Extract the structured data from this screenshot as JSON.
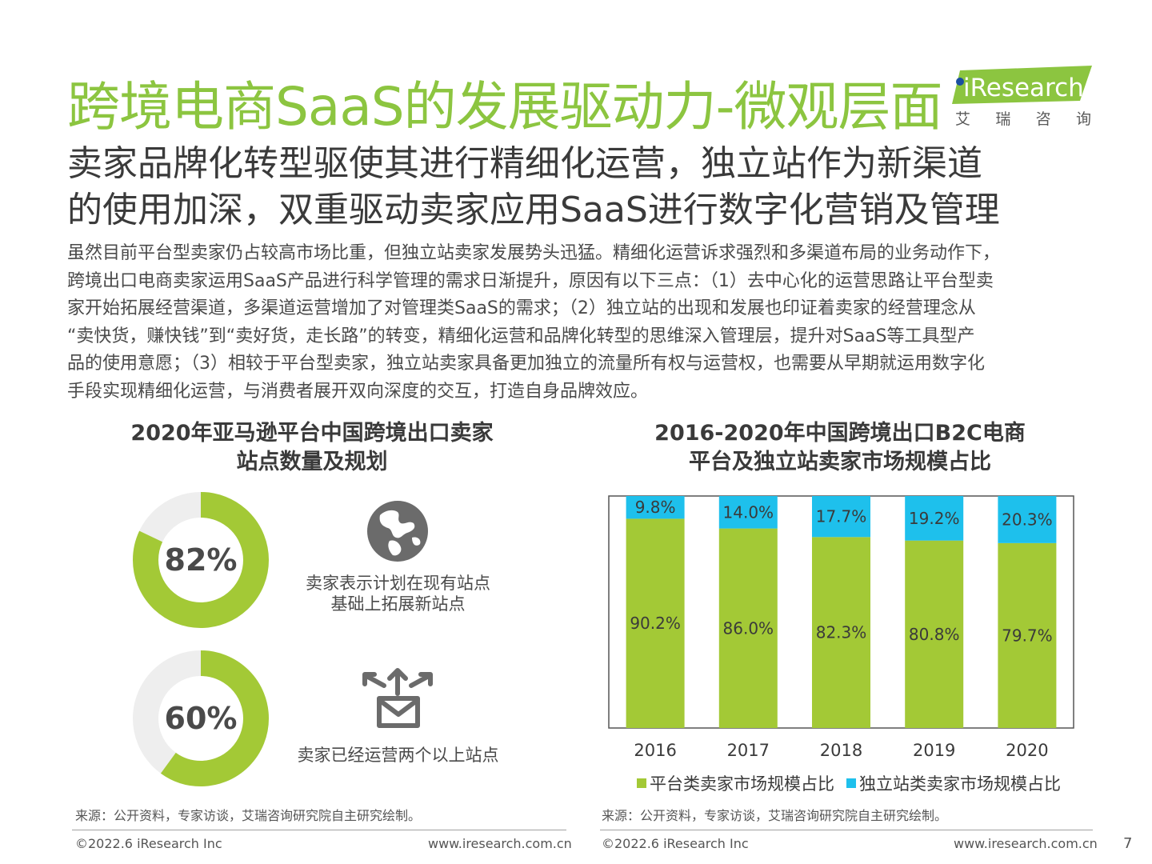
{
  "header": {
    "title": "跨境电商SaaS的发展驱动力-微观层面",
    "logo_text": "iResearch",
    "logo_cn": [
      "艾",
      "瑞",
      "咨",
      "询"
    ]
  },
  "subtitle": {
    "line1": "卖家品牌化转型驱使其进行精细化运营，独立站作为新渠道",
    "line2": "的使用加深，双重驱动卖家应用SaaS进行数字化营销及管理"
  },
  "body_lines": [
    "虽然目前平台型卖家仍占较高市场比重，但独立站卖家发展势头迅猛。精细化运营诉求强烈和多渠道布局的业务动作下，",
    "跨境出口电商卖家运用SaaS产品进行科学管理的需求日渐提升，原因有以下三点：（1）去中心化的运营思路让平台型卖",
    "家开始拓展经营渠道，多渠道运营增加了对管理类SaaS的需求；（2）独立站的出现和发展也印证着卖家的经营理念从",
    "“卖快货，赚快钱”到“卖好货，走长路”的转变，精细化运营和品牌化转型的思维深入管理层，提升对SaaS等工具型产",
    "品的使用意愿；（3）相较于平台型卖家，独立站卖家具备更加独立的流量所有权与运营权，也需要从早期就运用数字化",
    "手段实现精细化运营，与消费者展开双向深度的交互，打造自身品牌效应。"
  ],
  "left_panel": {
    "title_line1": "2020年亚马逊平台中国跨境出口卖家",
    "title_line2": "站点数量及规划",
    "stat1": {
      "percent": 82,
      "label": "82%",
      "caption_line1": "卖家表示计划在现有站点",
      "caption_line2": "基础上拓展新站点",
      "icon": "globe-icon"
    },
    "stat2": {
      "percent": 60,
      "label": "60%",
      "caption": "卖家已经运营两个以上站点",
      "icon": "mail-share-icon"
    },
    "colors": {
      "fill": "#a3c936",
      "track": "#eeeeee"
    }
  },
  "right_panel": {
    "title_line1": "2016-2020年中国跨境出口B2C电商",
    "title_line2": "平台及独立站卖家市场规模占比"
  },
  "chart_data": {
    "type": "bar",
    "stacked": true,
    "categories": [
      "2016",
      "2017",
      "2018",
      "2019",
      "2020"
    ],
    "series": [
      {
        "name": "平台类卖家市场规模占比",
        "values": [
          90.2,
          86.0,
          82.3,
          80.8,
          79.7
        ],
        "labels": [
          "90.2%",
          "86.0%",
          "82.3%",
          "80.8%",
          "79.7%"
        ],
        "color": "#a3c936"
      },
      {
        "name": "独立站类卖家市场规模占比",
        "values": [
          9.8,
          14.0,
          17.7,
          19.2,
          20.3
        ],
        "labels": [
          "9.8%",
          "14.0%",
          "17.7%",
          "19.2%",
          "20.3%"
        ],
        "color": "#1ec0ec"
      }
    ],
    "ylim": [
      0,
      100
    ],
    "legend": "bottom",
    "grid": false
  },
  "footer": {
    "source_left": "来源：公开资料，专家访谈，艾瑞咨询研究院自主研究绘制。",
    "source_right": "来源：公开资料，专家访谈，艾瑞咨询研究院自主研究绘制。",
    "copyright_left": "©2022.6 iResearch Inc",
    "url_left": "www.iresearch.com.cn",
    "copyright_right": "©2022.6 iResearch Inc",
    "url_right": "www.iresearch.com.cn",
    "page_number": "7"
  }
}
